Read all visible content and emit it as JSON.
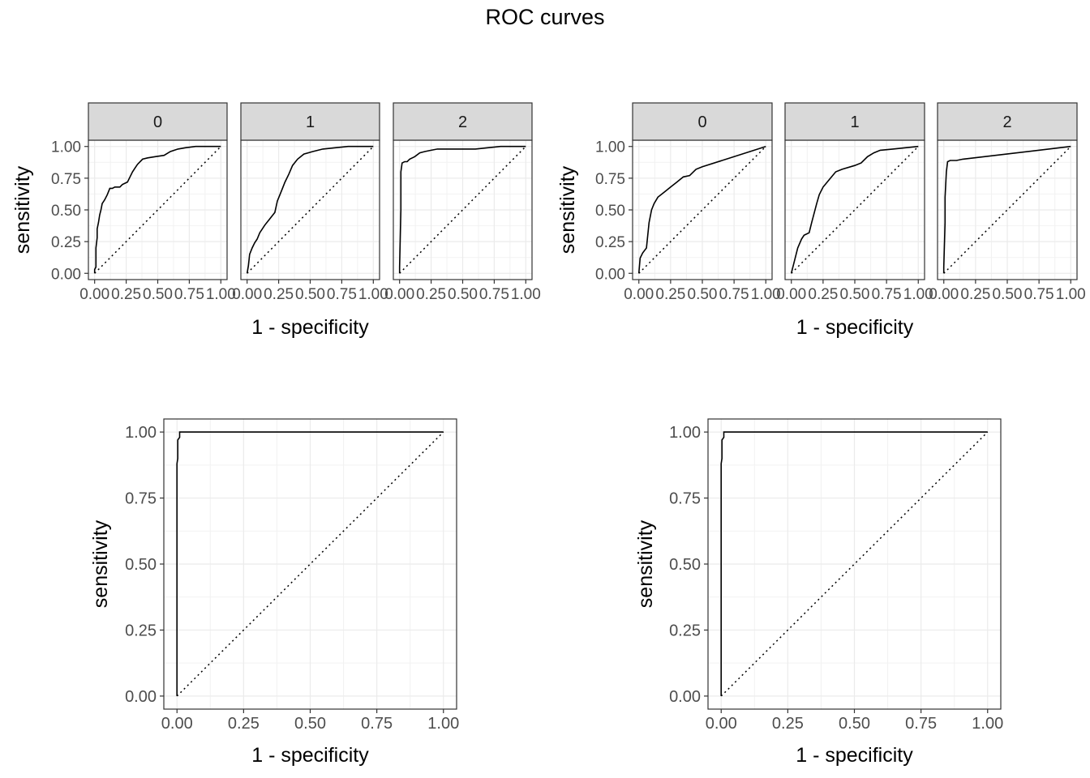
{
  "title": "ROC curves",
  "chart_data": [
    {
      "type": "line",
      "facets": [
        "0",
        "1",
        "2"
      ],
      "xlabel": "1 - specificity",
      "ylabel": "sensitivity",
      "xlim": [
        0,
        1
      ],
      "ylim": [
        0,
        1
      ],
      "x_ticks": [
        "0.00",
        "0.25",
        "0.50",
        "0.75",
        "1.00"
      ],
      "y_ticks": [
        "0.00",
        "0.25",
        "0.50",
        "0.75",
        "1.00"
      ],
      "grid": true,
      "reference_line": "diagonal dotted",
      "series": [
        {
          "x": [
            0,
            0,
            0.01,
            0.01,
            0.02,
            0.02,
            0.03,
            0.04,
            0.05,
            0.06,
            0.08,
            0.1,
            0.12,
            0.14,
            0.16,
            0.2,
            0.22,
            0.26,
            0.28,
            0.3,
            0.32,
            0.34,
            0.38,
            0.42,
            0.48,
            0.55,
            0.6,
            0.66,
            0.72,
            0.8,
            0.88,
            1.0
          ],
          "y": [
            0,
            0.03,
            0.05,
            0.2,
            0.28,
            0.35,
            0.4,
            0.46,
            0.5,
            0.55,
            0.58,
            0.62,
            0.67,
            0.67,
            0.68,
            0.68,
            0.7,
            0.72,
            0.76,
            0.8,
            0.83,
            0.86,
            0.9,
            0.91,
            0.92,
            0.93,
            0.96,
            0.98,
            0.99,
            1.0,
            1.0,
            1.0
          ]
        },
        {
          "x": [
            0,
            0.01,
            0.02,
            0.04,
            0.06,
            0.08,
            0.1,
            0.14,
            0.18,
            0.22,
            0.24,
            0.26,
            0.28,
            0.3,
            0.33,
            0.36,
            0.4,
            0.45,
            0.52,
            0.6,
            0.7,
            0.8,
            0.9,
            1.0
          ],
          "y": [
            0,
            0.06,
            0.15,
            0.2,
            0.24,
            0.27,
            0.32,
            0.38,
            0.43,
            0.48,
            0.57,
            0.62,
            0.67,
            0.72,
            0.78,
            0.85,
            0.9,
            0.94,
            0.96,
            0.98,
            0.99,
            1.0,
            1.0,
            1.0
          ],
          "_": ""
        },
        {
          "x": [
            0,
            0,
            0.01,
            0.01,
            0.02,
            0.04,
            0.06,
            0.08,
            0.12,
            0.16,
            0.2,
            0.25,
            0.3,
            0.4,
            0.5,
            0.6,
            0.7,
            0.8,
            0.9,
            1.0
          ],
          "y": [
            0,
            0.05,
            0.5,
            0.8,
            0.87,
            0.88,
            0.88,
            0.9,
            0.92,
            0.95,
            0.96,
            0.97,
            0.98,
            0.98,
            0.98,
            0.98,
            0.99,
            1.0,
            1.0,
            1.0
          ]
        }
      ]
    },
    {
      "type": "line",
      "facets": [
        "0",
        "1",
        "2"
      ],
      "xlabel": "1 - specificity",
      "ylabel": "sensitivity",
      "xlim": [
        0,
        1
      ],
      "ylim": [
        0,
        1
      ],
      "x_ticks": [
        "0.00",
        "0.25",
        "0.50",
        "0.75",
        "1.00"
      ],
      "y_ticks": [
        "0.00",
        "0.25",
        "0.50",
        "0.75",
        "1.00"
      ],
      "grid": true,
      "reference_line": "diagonal dotted",
      "series": [
        {
          "x": [
            0,
            0.01,
            0.03,
            0.06,
            0.08,
            0.1,
            0.12,
            0.15,
            0.2,
            0.25,
            0.3,
            0.35,
            0.4,
            0.45,
            0.5,
            1.0
          ],
          "y": [
            0,
            0.12,
            0.16,
            0.2,
            0.4,
            0.5,
            0.55,
            0.6,
            0.64,
            0.68,
            0.72,
            0.76,
            0.77,
            0.82,
            0.84,
            1.0
          ]
        },
        {
          "x": [
            0,
            0.05,
            0.08,
            0.1,
            0.14,
            0.16,
            0.2,
            0.22,
            0.25,
            0.3,
            0.35,
            0.4,
            0.5,
            0.55,
            0.6,
            0.65,
            0.7,
            0.8,
            0.9,
            1.0
          ],
          "y": [
            0,
            0.2,
            0.27,
            0.3,
            0.32,
            0.4,
            0.55,
            0.62,
            0.68,
            0.74,
            0.8,
            0.82,
            0.85,
            0.87,
            0.92,
            0.95,
            0.97,
            0.98,
            0.99,
            1.0
          ]
        },
        {
          "x": [
            0,
            0,
            0.01,
            0.01,
            0.02,
            0.03,
            0.05,
            0.1,
            0.15,
            1.0
          ],
          "y": [
            0,
            0.05,
            0.4,
            0.6,
            0.8,
            0.88,
            0.89,
            0.89,
            0.9,
            1.0
          ]
        }
      ]
    },
    {
      "type": "line",
      "xlabel": "1 - specificity",
      "ylabel": "sensitivity",
      "xlim": [
        0,
        1
      ],
      "ylim": [
        0,
        1
      ],
      "x_ticks": [
        "0.00",
        "0.25",
        "0.50",
        "0.75",
        "1.00"
      ],
      "y_ticks": [
        "0.00",
        "0.25",
        "0.50",
        "0.75",
        "1.00"
      ],
      "grid": true,
      "reference_line": "diagonal dotted",
      "series": [
        {
          "x": [
            0,
            0,
            0.003,
            0.003,
            0.01,
            0.01,
            1.0
          ],
          "y": [
            0,
            0.88,
            0.9,
            0.97,
            0.98,
            1.0,
            1.0
          ]
        }
      ]
    },
    {
      "type": "line",
      "xlabel": "1 - specificity",
      "ylabel": "sensitivity",
      "xlim": [
        0,
        1
      ],
      "ylim": [
        0,
        1
      ],
      "x_ticks": [
        "0.00",
        "0.25",
        "0.50",
        "0.75",
        "1.00"
      ],
      "y_ticks": [
        "0.00",
        "0.25",
        "0.50",
        "0.75",
        "1.00"
      ],
      "grid": true,
      "reference_line": "diagonal dotted",
      "series": [
        {
          "x": [
            0,
            0,
            0.003,
            0.003,
            0.01,
            0.01,
            1.0
          ],
          "y": [
            0,
            0.88,
            0.9,
            0.97,
            0.98,
            1.0,
            1.0
          ]
        }
      ]
    }
  ]
}
